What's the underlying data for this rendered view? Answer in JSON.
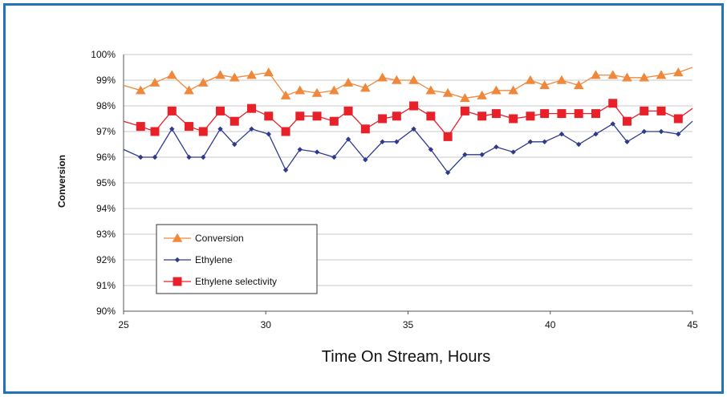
{
  "chart_data": {
    "type": "line",
    "title": "",
    "xlabel": "Time On Stream, Hours",
    "ylabel": "Conversion",
    "xlim": [
      25,
      45
    ],
    "ylim": [
      90,
      100
    ],
    "x_ticks": [
      25,
      30,
      35,
      40,
      45
    ],
    "y_ticks": [
      "90%",
      "91%",
      "92%",
      "93%",
      "94%",
      "95%",
      "96%",
      "97%",
      "98%",
      "99%",
      "100%"
    ],
    "grid": "horizontal",
    "legend_position": "lower-left",
    "series": [
      {
        "name": "Conversion",
        "color": "#f0883c",
        "marker": "triangle",
        "x": [
          25.0,
          25.6,
          26.1,
          26.7,
          27.3,
          27.8,
          28.4,
          28.9,
          29.5,
          30.1,
          30.7,
          31.2,
          31.8,
          32.4,
          32.9,
          33.5,
          34.1,
          34.6,
          35.2,
          35.8,
          36.4,
          37.0,
          37.6,
          38.1,
          38.7,
          39.3,
          39.8,
          40.4,
          41.0,
          41.6,
          42.2,
          42.7,
          43.3,
          43.9,
          44.5,
          45.0
        ],
        "values": [
          98.8,
          98.6,
          98.9,
          99.2,
          98.6,
          98.9,
          99.2,
          99.1,
          99.2,
          99.3,
          98.4,
          98.6,
          98.5,
          98.6,
          98.9,
          98.7,
          99.1,
          99.0,
          99.0,
          98.6,
          98.5,
          98.3,
          98.4,
          98.6,
          98.6,
          99.0,
          98.8,
          99.0,
          98.8,
          99.2,
          99.2,
          99.1,
          99.1,
          99.2,
          99.3,
          99.5
        ]
      },
      {
        "name": "Ethylene",
        "color": "#2e3a8c",
        "marker": "diamond",
        "x": [
          25.0,
          25.6,
          26.1,
          26.7,
          27.3,
          27.8,
          28.4,
          28.9,
          29.5,
          30.1,
          30.7,
          31.2,
          31.8,
          32.4,
          32.9,
          33.5,
          34.1,
          34.6,
          35.2,
          35.8,
          36.4,
          37.0,
          37.6,
          38.1,
          38.7,
          39.3,
          39.8,
          40.4,
          41.0,
          41.6,
          42.2,
          42.7,
          43.3,
          43.9,
          44.5,
          45.0
        ],
        "values": [
          96.3,
          96.0,
          96.0,
          97.1,
          96.0,
          96.0,
          97.1,
          96.5,
          97.1,
          96.9,
          95.5,
          96.3,
          96.2,
          96.0,
          96.7,
          95.9,
          96.6,
          96.6,
          97.1,
          96.3,
          95.4,
          96.1,
          96.1,
          96.4,
          96.2,
          96.6,
          96.6,
          96.9,
          96.5,
          96.9,
          97.3,
          96.6,
          97.0,
          97.0,
          96.9,
          97.4
        ]
      },
      {
        "name": "Ethylene selectivity",
        "color": "#e8202a",
        "marker": "square",
        "x": [
          25.0,
          25.6,
          26.1,
          26.7,
          27.3,
          27.8,
          28.4,
          28.9,
          29.5,
          30.1,
          30.7,
          31.2,
          31.8,
          32.4,
          32.9,
          33.5,
          34.1,
          34.6,
          35.2,
          35.8,
          36.4,
          37.0,
          37.6,
          38.1,
          38.7,
          39.3,
          39.8,
          40.4,
          41.0,
          41.6,
          42.2,
          42.7,
          43.3,
          43.9,
          44.5,
          45.0
        ],
        "values": [
          97.4,
          97.2,
          97.0,
          97.8,
          97.2,
          97.0,
          97.8,
          97.4,
          97.9,
          97.6,
          97.0,
          97.6,
          97.6,
          97.4,
          97.8,
          97.1,
          97.5,
          97.6,
          98.0,
          97.6,
          96.8,
          97.8,
          97.6,
          97.7,
          97.5,
          97.6,
          97.7,
          97.7,
          97.7,
          97.7,
          98.1,
          97.4,
          97.8,
          97.8,
          97.5,
          97.9
        ]
      }
    ]
  }
}
